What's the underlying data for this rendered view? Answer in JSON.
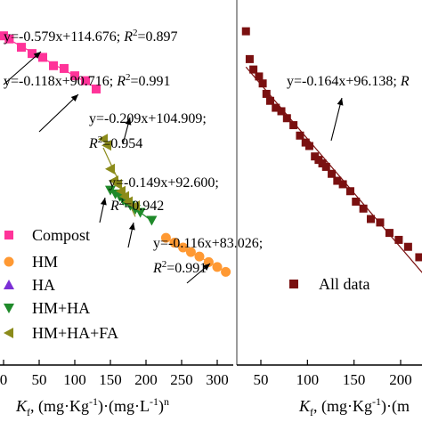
{
  "chart_data": [
    {
      "type": "scatter",
      "xlabel": "K_f, (mg·Kg⁻¹)·(mg·L⁻¹)ⁿ",
      "xlabel_main": "K",
      "xlabel_sub": "f",
      "xlabel_rest": ", (mg·Kg",
      "xlabel_sup1": "-1",
      "xlabel_mid": ")·(mg·L",
      "xlabel_sup2": "-1",
      "xlabel_end": ")",
      "xlabel_supn": "n",
      "xticks": [
        "0",
        "50",
        "100",
        "150",
        "200",
        "250",
        "300"
      ],
      "xlim": [
        0,
        320
      ],
      "ylim": [
        20,
        125
      ],
      "legend_position": "bottom-left",
      "series": [
        {
          "name": "Compost",
          "color": "#ff3399",
          "marker": "square",
          "x": [
            0,
            8,
            25,
            40,
            55,
            70,
            85,
            100,
            115,
            130
          ],
          "y": [
            114.7,
            113.8,
            111.4,
            109.6,
            108.5,
            106.1,
            105.3,
            103.2,
            101.8,
            99.4
          ],
          "equation": "y=-0.579x+114.676;",
          "r2_label": "R",
          "r2_value": "=0.897"
        },
        {
          "name": "HM",
          "color": "#ff9933",
          "marker": "circle",
          "x": [
            228,
            240,
            252,
            263,
            275,
            288,
            300,
            312
          ],
          "y": [
            56.6,
            55.2,
            53.8,
            52.5,
            51.2,
            49.6,
            48.2,
            46.8
          ],
          "equation": "y=-0.116x+83.026;",
          "r2_label": "R",
          "r2_value": "=0.991"
        },
        {
          "name": "HA",
          "color": "#7b2fd6",
          "marker": "triangle-up",
          "x": [],
          "y": [],
          "equation": "y=-0.118x+90.716;",
          "r2_label": "R",
          "r2_value": "=0.991"
        },
        {
          "name": "HM+HA",
          "color": "#1f8a2a",
          "marker": "triangle-down",
          "x": [
            150,
            157,
            163,
            168,
            172,
            178,
            185,
            192,
            208
          ],
          "y": [
            70.3,
            69.2,
            68.5,
            67.4,
            66.8,
            65.9,
            64.8,
            63.9,
            61.6
          ],
          "equation": "y=-0.149x+92.600;",
          "r2_label": "R",
          "r2_value": "=0.942"
        },
        {
          "name": "HM+HA+FA",
          "color": "#8b8b1a",
          "marker": "triangle-left",
          "x": [
            140,
            145,
            150,
            155,
            160,
            165,
            170,
            175,
            185
          ],
          "y": [
            85.0,
            83.2,
            76.4,
            73.0,
            72.0,
            70.0,
            68.5,
            67.0,
            65.8
          ],
          "equation": "y=-0.209x+104.909;",
          "r2_label": "R",
          "r2_value": "=0.954"
        }
      ]
    },
    {
      "type": "scatter",
      "xlabel_main": "K",
      "xlabel_sub": "f",
      "xlabel_rest": ", (mg·Kg",
      "xlabel_sup1": "-1",
      "xlabel_mid": ")·(m",
      "xticks": [
        "50",
        "100",
        "150",
        "200"
      ],
      "xlim": [
        25,
        235
      ],
      "ylim": [
        20,
        125
      ],
      "legend_position": "bottom-right",
      "series": [
        {
          "name": "All data",
          "color": "#7a1010",
          "marker": "square",
          "x": [
            34,
            38,
            42,
            48,
            52,
            56,
            60,
            66,
            72,
            78,
            85,
            92,
            98,
            102,
            108,
            112,
            116,
            120,
            126,
            132,
            138,
            146,
            152,
            160,
            168,
            178,
            188,
            198,
            208,
            220,
            230
          ],
          "y": [
            116,
            108,
            105,
            103,
            101,
            98,
            96,
            94,
            93,
            91,
            89,
            86,
            84,
            83,
            80,
            79,
            78,
            77,
            75,
            73,
            72,
            70,
            67,
            65,
            62,
            61,
            58,
            56,
            54,
            51,
            49
          ],
          "equation": "y=-0.164x+96.138;",
          "equation_tail": "R"
        }
      ]
    }
  ]
}
